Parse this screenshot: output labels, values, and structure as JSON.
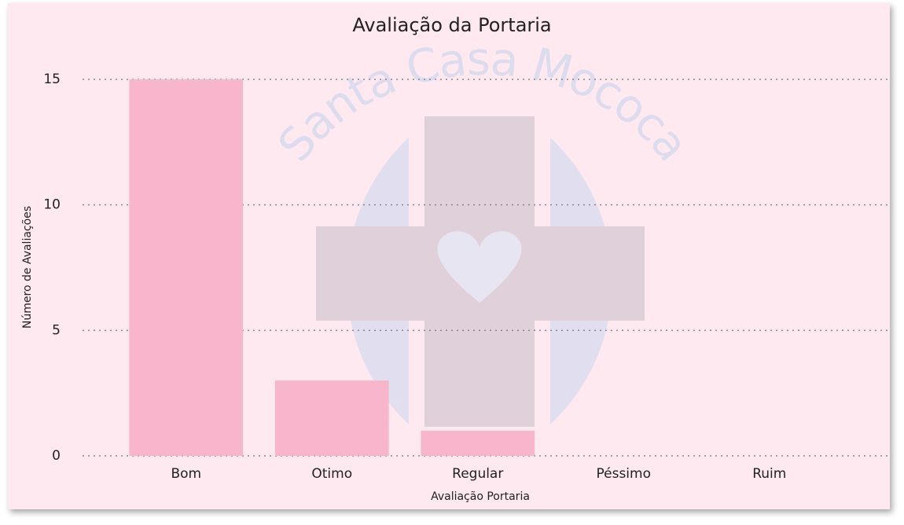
{
  "chart_data": {
    "type": "bar",
    "title": "Avaliação da Portaria",
    "watermark": "Santa Casa Mococa",
    "x_label": "Avaliação Portaria",
    "y_label": "Número de Avaliações",
    "categories": [
      "Bom",
      "Otimo",
      "Regular",
      "Péssimo",
      "Ruim"
    ],
    "values": [
      15,
      3,
      1,
      0,
      0
    ],
    "color": "#f7b6cb",
    "ylim": [
      0,
      15
    ],
    "yticks": [
      0,
      5,
      10,
      15
    ],
    "grid": true
  }
}
